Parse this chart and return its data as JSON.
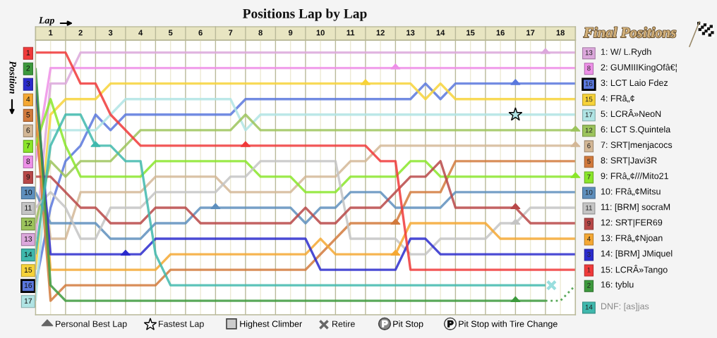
{
  "chart_data": {
    "type": "line",
    "title": "Positions Lap by Lap",
    "xlabel": "Lap",
    "ylabel": "Position",
    "annotations": [
      "Final Positions",
      "Personal Best Lap",
      "Fastest Lap",
      "Retire"
    ],
    "xlim": [
      0,
      18
    ],
    "ylim": [
      17.9,
      0.2
    ],
    "xticks": [
      {
        "value": 0,
        "label": null
      },
      {
        "value": 0.5,
        "label": "1"
      },
      {
        "value": 1,
        "label": null
      },
      {
        "value": 1.5,
        "label": "2"
      },
      {
        "value": 2,
        "label": null
      },
      {
        "value": 2.5,
        "label": "3"
      },
      {
        "value": 3,
        "label": null
      },
      {
        "value": 3.5,
        "label": "4"
      },
      {
        "value": 4,
        "label": null
      },
      {
        "value": 4.5,
        "label": "5"
      },
      {
        "value": 5,
        "label": null
      },
      {
        "value": 5.5,
        "label": "6"
      },
      {
        "value": 6,
        "label": null
      },
      {
        "value": 6.5,
        "label": "7"
      },
      {
        "value": 7,
        "label": null
      },
      {
        "value": 7.5,
        "label": "8"
      },
      {
        "value": 8,
        "label": null
      },
      {
        "value": 8.5,
        "label": "9"
      },
      {
        "value": 9,
        "label": null
      },
      {
        "value": 9.5,
        "label": "10"
      },
      {
        "value": 10,
        "label": null
      },
      {
        "value": 10.5,
        "label": "11"
      },
      {
        "value": 11,
        "label": null
      },
      {
        "value": 11.5,
        "label": "12"
      },
      {
        "value": 12,
        "label": null
      },
      {
        "value": 12.5,
        "label": "13"
      },
      {
        "value": 13,
        "label": null
      },
      {
        "value": 13.5,
        "label": "14"
      },
      {
        "value": 14,
        "label": null
      },
      {
        "value": 14.5,
        "label": "15"
      },
      {
        "value": 15,
        "label": null
      },
      {
        "value": 15.5,
        "label": "16"
      },
      {
        "value": 16,
        "label": null
      },
      {
        "value": 16.5,
        "label": "17"
      },
      {
        "value": 17,
        "label": null
      },
      {
        "value": 17.5,
        "label": "18"
      },
      {
        "value": 18,
        "label": null
      }
    ],
    "yticks": [
      1,
      2,
      3,
      4,
      5,
      6,
      7,
      8,
      9,
      10,
      11,
      12,
      13,
      14,
      15,
      16,
      17
    ],
    "y2_categories": [
      "13",
      "8",
      "16",
      "15",
      "17",
      "12",
      "6",
      "5",
      "7",
      "10",
      "11",
      "9",
      "4",
      "3",
      "1",
      "2",
      "14"
    ],
    "grid": "x",
    "legend": "bottom",
    "series": [
      {
        "name": "1: W/ L.Rydh",
        "color": "#dca8dc",
        "x": [
          0,
          0.5,
          1,
          1.5,
          18
        ],
        "values": [
          13,
          3,
          3,
          1,
          1
        ]
      },
      {
        "name": "2: GUMIIIKingOfâ€¦",
        "color": "#ee90e8",
        "x": [
          0,
          0.5,
          18
        ],
        "values": [
          8,
          2,
          2
        ]
      },
      {
        "name": "3: LCT Laio Fdez",
        "color": "#5a78dd",
        "x": [
          0,
          0.5,
          1,
          1.5,
          2,
          2.5,
          3,
          6.5,
          7,
          12.5,
          13,
          13.5,
          14,
          18
        ],
        "values": [
          16,
          11,
          8,
          7,
          5,
          6,
          5,
          5,
          4,
          4,
          3,
          4,
          3,
          3
        ]
      },
      {
        "name": "4: FRâ„¢",
        "color": "#f7d339",
        "x": [
          0,
          0.5,
          1,
          2,
          2.5,
          12.5,
          13,
          13.5,
          14,
          18
        ],
        "values": [
          15,
          5,
          4,
          4,
          3,
          3,
          4,
          3,
          4,
          4
        ]
      },
      {
        "name": "5: LCRÂ»NeoN",
        "color": "#b0e4e4",
        "x": [
          0,
          0.5,
          2,
          3,
          6.5,
          7,
          7.5,
          18
        ],
        "values": [
          17,
          6,
          6,
          4,
          4,
          6,
          5,
          5
        ]
      },
      {
        "name": "6: LCT S.Quintela",
        "color": "#9cc45c",
        "x": [
          0,
          0.5,
          1,
          1.5,
          2.5,
          3.5,
          6.5,
          7,
          7.5,
          18
        ],
        "values": [
          12,
          8,
          9,
          8,
          8,
          6,
          6,
          5,
          6,
          6
        ]
      },
      {
        "name": "7: SRT|menjacocs",
        "color": "#d3b796",
        "x": [
          0,
          0.5,
          1,
          1.5,
          3.5,
          4,
          6,
          6.5,
          8.5,
          9,
          10,
          10.5,
          11,
          11.5,
          18
        ],
        "values": [
          6,
          13,
          13,
          10,
          10,
          9,
          9,
          10,
          10,
          9,
          9,
          8,
          8,
          7,
          7
        ]
      },
      {
        "name": "8: SRT|Javi3R",
        "color": "#d27a3c",
        "x": [
          0,
          0.5,
          1,
          4,
          4.5,
          9,
          10.5,
          12,
          12.5,
          13.5,
          14,
          18
        ],
        "values": [
          5,
          17,
          16,
          16,
          15,
          15,
          12,
          12,
          10,
          10,
          8,
          8
        ]
      },
      {
        "name": "9: FRâ„¢///Mito21",
        "color": "#8ae62a",
        "x": [
          0,
          0.5,
          1,
          1.5,
          3.5,
          4,
          7,
          7.5,
          8.5,
          9,
          10,
          10.5,
          12,
          12.5,
          13,
          13.5,
          18
        ],
        "values": [
          7,
          4,
          7,
          9,
          9,
          8,
          8,
          9,
          9,
          10,
          10,
          9,
          9,
          8,
          8,
          9,
          9
        ]
      },
      {
        "name": "10: FRâ„¢Mitsu",
        "color": "#5e8fbd",
        "x": [
          0,
          0.5,
          2,
          2.5,
          3.5,
          4,
          5,
          5.5,
          8.5,
          9,
          9.5,
          10,
          10.5,
          11.5,
          12,
          13.5,
          14,
          18
        ],
        "values": [
          10,
          12,
          12,
          13,
          13,
          12,
          12,
          11,
          11,
          12,
          11,
          11,
          10,
          10,
          11,
          11,
          10,
          10
        ]
      },
      {
        "name": "11: [BRM] socraM",
        "color": "#c4c4c4",
        "x": [
          0,
          0.5,
          1,
          1.5,
          2,
          2.5,
          3.5,
          4,
          6,
          6.5,
          7,
          7.5,
          10,
          10.5,
          12,
          12.5,
          13,
          13.5,
          15,
          15.5,
          16,
          16.5,
          18
        ],
        "values": [
          11,
          10,
          11,
          13,
          13,
          11,
          11,
          10,
          10,
          9,
          9,
          8,
          8,
          13,
          13,
          14,
          14,
          13,
          13,
          12,
          12,
          11,
          11
        ]
      },
      {
        "name": "12: SRT|FER69",
        "color": "#b84848",
        "x": [
          0,
          0.5,
          1.5,
          2,
          2.5,
          3.5,
          4,
          5,
          5.5,
          8.5,
          9,
          9.5,
          10,
          10.5,
          11.5,
          12.5,
          13,
          13.5,
          14,
          16,
          16.5,
          18
        ],
        "values": [
          9,
          9,
          11,
          11,
          12,
          12,
          11,
          11,
          12,
          12,
          11,
          12,
          12,
          11,
          11,
          9,
          9,
          8,
          11,
          11,
          12,
          12
        ]
      },
      {
        "name": "13: FRâ„¢Njoan",
        "color": "#f5a833",
        "x": [
          0,
          0.5,
          4,
          4.5,
          9,
          9.5,
          10,
          12,
          12.5,
          15,
          15.5,
          18
        ],
        "values": [
          4,
          15,
          15,
          14,
          14,
          13,
          14,
          14,
          12,
          12,
          13,
          13
        ]
      },
      {
        "name": "14: [BRM] JMiquel",
        "color": "#2b2bcc",
        "x": [
          0,
          0.5,
          3.5,
          4,
          9,
          9.5,
          12,
          12.5,
          13,
          13.5,
          18
        ],
        "values": [
          3,
          14,
          14,
          13,
          13,
          15,
          15,
          13,
          13,
          14,
          14
        ]
      },
      {
        "name": "15: LCRÂ»Tango",
        "color": "#f03a3a",
        "x": [
          0,
          1,
          1.5,
          2,
          2.5,
          3.5,
          11,
          11.5,
          12,
          12.5,
          18
        ],
        "values": [
          1,
          1,
          3,
          3,
          5,
          7,
          7,
          8,
          8,
          15,
          15
        ]
      },
      {
        "name": "16: tyblu",
        "color": "#3d9a3d",
        "x": [
          0,
          0.5,
          1,
          17
        ],
        "values": [
          2,
          16,
          17,
          17
        ]
      },
      {
        "color": "#3d9a3d",
        "line_style": "dotted",
        "x": [
          17,
          17.5,
          18
        ],
        "values": [
          17,
          17,
          16
        ]
      },
      {
        "name": "DNF: [as]jas",
        "color": "#3fb8ad",
        "x": [
          0,
          0.5,
          1,
          1.5,
          2,
          2.5,
          3,
          3.5,
          4,
          4.5,
          17
        ],
        "values": [
          14,
          7,
          5,
          5,
          7,
          7,
          8,
          8,
          14,
          16,
          16
        ]
      },
      {
        "type": "scatter",
        "marker": "triangle",
        "color": "#666666",
        "x": [
          2,
          3,
          6,
          7,
          11,
          12,
          12,
          12,
          16,
          16,
          16,
          16,
          17,
          18,
          18,
          18
        ],
        "values": [
          7,
          14,
          11,
          7,
          3,
          2,
          14,
          12,
          3,
          11,
          12,
          17,
          1,
          6,
          7,
          9
        ],
        "colors": [
          "#3fb8ad",
          "#2b2bcc",
          "#5e8fbd",
          "#f03a3a",
          "#f7d339",
          "#ee90e8",
          "#f5a833",
          "#d27a3c",
          "#5a78dd",
          "#b84848",
          "#c4c4c4",
          "#3d9a3d",
          "#dca8dc",
          "#9cc45c",
          "#d3b796",
          "#8ae62a"
        ]
      },
      {
        "type": "scatter",
        "marker": "star",
        "color": "#ffffff",
        "x": [
          16
        ],
        "values": [
          5
        ],
        "colors": [
          "#b0e4e4"
        ]
      },
      {
        "type": "scatter",
        "name": "Highest Climber",
        "marker": "square",
        "color": "#cccccc"
      },
      {
        "type": "scatter",
        "marker": "cross",
        "color": "#666666",
        "x": [
          17.2
        ],
        "values": [
          16
        ],
        "colors": [
          "#99dede"
        ]
      },
      {
        "type": "scatter",
        "name": "Pit Stop",
        "marker": "circle",
        "color": "#888888"
      },
      {
        "type": "scatter",
        "name": "Pit Stop with Tire Change",
        "marker": "circle",
        "color": "#ffffff"
      }
    ]
  }
}
